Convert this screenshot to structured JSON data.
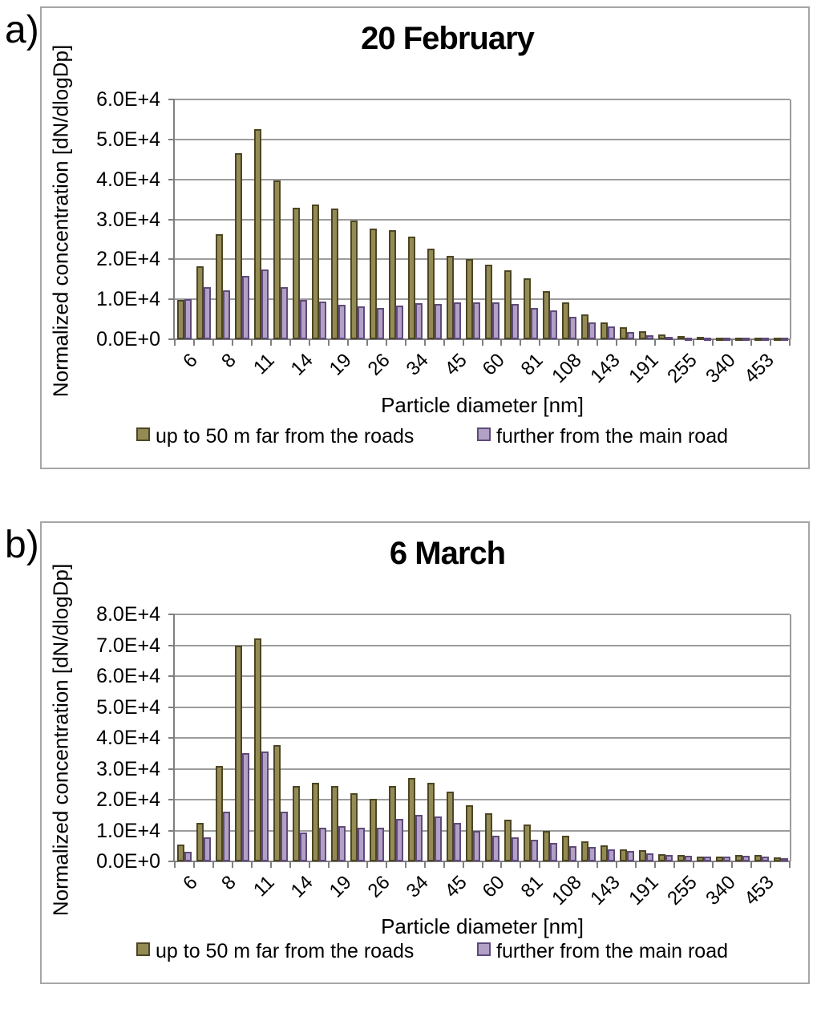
{
  "figure": {
    "panels": [
      {
        "panel_label": "a)",
        "title": "20 February",
        "y_axis": {
          "label": "Normalized concentration [dN/dlogDp]",
          "tick_labels": [
            "0.0E+0",
            "1.0E+4",
            "2.0E+4",
            "3.0E+4",
            "4.0E+4",
            "5.0E+4",
            "6.0E+4"
          ]
        },
        "x_axis": {
          "label": "Particle diameter [nm]",
          "tick_labels": [
            "6",
            "8",
            "11",
            "14",
            "19",
            "26",
            "34",
            "45",
            "60",
            "81",
            "108",
            "143",
            "191",
            "255",
            "340",
            "453"
          ],
          "tick_label_placement": "under every other bar starting with the first"
        },
        "chart_data": {
          "type": "bar",
          "title": "20 February",
          "xlabel": "Particle diameter [nm]",
          "ylabel": "Normalized concentration [dN/dlogDp]",
          "ylim": [
            0,
            60000
          ],
          "ystep": 10000,
          "grid": true,
          "legend_position": "bottom",
          "x_tick_labels": [
            "6",
            "8",
            "11",
            "14",
            "19",
            "26",
            "34",
            "45",
            "60",
            "81",
            "108",
            "143",
            "191",
            "255",
            "340",
            "453"
          ],
          "series": [
            {
              "name": "up to 50 m far from the roads",
              "fill": "#948B54",
              "border": "#4C4624",
              "values": [
                9800,
                18300,
                26200,
                46500,
                52500,
                39700,
                33000,
                33700,
                32800,
                29700,
                27700,
                27200,
                25600,
                22700,
                20900,
                20100,
                18700,
                17200,
                15200,
                12000,
                9300,
                6200,
                4300,
                3000,
                2000,
                1300,
                800,
                600,
                500,
                500,
                500,
                500
              ]
            },
            {
              "name": "further from the main road",
              "fill": "#B2A1C7",
              "border": "#604A7B",
              "values": [
                10000,
                13000,
                12200,
                15800,
                17500,
                13100,
                9800,
                9500,
                8700,
                8200,
                7800,
                8500,
                9000,
                8800,
                9200,
                9200,
                9300,
                8900,
                7900,
                7200,
                5600,
                4200,
                3200,
                1800,
                1100,
                700,
                500,
                400,
                400,
                400,
                400,
                400
              ]
            }
          ]
        }
      },
      {
        "panel_label": "b)",
        "title": "6 March",
        "y_axis": {
          "label": "Normalized concentration [dN/dlogDp]",
          "tick_labels": [
            "0.0E+0",
            "1.0E+4",
            "2.0E+4",
            "3.0E+4",
            "4.0E+4",
            "5.0E+4",
            "6.0E+4",
            "7.0E+4",
            "8.0E+4"
          ]
        },
        "x_axis": {
          "label": "Particle diameter [nm]",
          "tick_labels": [
            "6",
            "8",
            "11",
            "14",
            "19",
            "26",
            "34",
            "45",
            "60",
            "81",
            "108",
            "143",
            "191",
            "255",
            "340",
            "453"
          ],
          "tick_label_placement": "under every other bar starting with the first"
        },
        "chart_data": {
          "type": "bar",
          "title": "6 March",
          "xlabel": "Particle diameter [nm]",
          "ylabel": "Normalized concentration [dN/dlogDp]",
          "ylim": [
            0,
            80000
          ],
          "ystep": 10000,
          "grid": true,
          "legend_position": "bottom",
          "x_tick_labels": [
            "6",
            "8",
            "11",
            "14",
            "19",
            "26",
            "34",
            "45",
            "60",
            "81",
            "108",
            "143",
            "191",
            "255",
            "340",
            "453"
          ],
          "series": [
            {
              "name": "up to 50 m far from the roads",
              "fill": "#948B54",
              "border": "#4C4624",
              "values": [
                5500,
                12500,
                30800,
                70000,
                72200,
                37700,
                24500,
                25500,
                24400,
                22000,
                20300,
                24400,
                26900,
                25500,
                22500,
                18100,
                15600,
                13400,
                11900,
                9800,
                8400,
                6600,
                5200,
                4000,
                3600,
                2300,
                2000,
                1500,
                1500,
                2200,
                2000,
                1300
              ]
            },
            {
              "name": "further from the main road",
              "fill": "#B2A1C7",
              "border": "#604A7B",
              "values": [
                3000,
                7800,
                16200,
                35000,
                35500,
                16200,
                9300,
                11000,
                11300,
                11000,
                11000,
                13700,
                15000,
                14500,
                12400,
                9800,
                8300,
                7700,
                7000,
                6000,
                4900,
                4600,
                4000,
                3300,
                2700,
                2100,
                1800,
                1600,
                1500,
                1800,
                1600,
                1100
              ]
            }
          ]
        }
      }
    ],
    "colors": {
      "gridline": "#9C9C9C",
      "axis": "#7F7F7F",
      "panel_border": "#A6A6A6",
      "text": "#000000"
    }
  }
}
